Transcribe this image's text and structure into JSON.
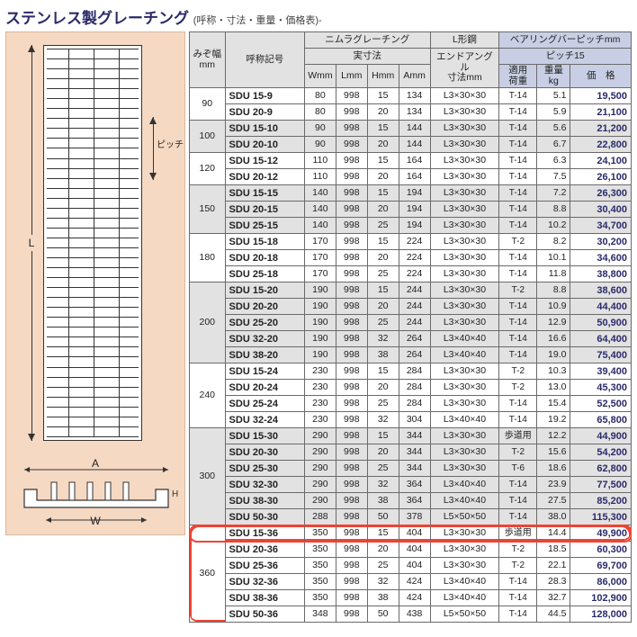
{
  "title": "ステンレス製グレーチング",
  "subtitle": "(呼称・寸法・重量・価格表)-",
  "diagram": {
    "L": "L",
    "pitch": "ピッチ",
    "A": "A",
    "W": "W",
    "H": "H"
  },
  "headers": {
    "mizo": "みぞ幅\nmm",
    "model": "呼称記号",
    "nimura": "ニムラグレーチング",
    "jissun": "実寸法",
    "W": "Wmm",
    "L": "Lmm",
    "H": "Hmm",
    "A": "Amm",
    "Lkou": "L形鋼",
    "endangle": "エンドアングル\n寸法mm",
    "bearing": "ベアリングバーピッチmm",
    "pitch15": "ピッチ15",
    "load": "適用\n荷重",
    "wt": "重量\nkg",
    "price": "価　格"
  },
  "groups": [
    {
      "mizo": "90",
      "band": false,
      "rows": [
        {
          "m": "SDU 15-9",
          "W": "80",
          "L": "998",
          "H": "15",
          "A": "134",
          "ang": "L3×30×30",
          "ld": "T-14",
          "wt": "5.1",
          "p": "19,500"
        },
        {
          "m": "SDU 20-9",
          "W": "80",
          "L": "998",
          "H": "20",
          "A": "134",
          "ang": "L3×30×30",
          "ld": "T-14",
          "wt": "5.9",
          "p": "21,100"
        }
      ]
    },
    {
      "mizo": "100",
      "band": true,
      "rows": [
        {
          "m": "SDU 15-10",
          "W": "90",
          "L": "998",
          "H": "15",
          "A": "144",
          "ang": "L3×30×30",
          "ld": "T-14",
          "wt": "5.6",
          "p": "21,200"
        },
        {
          "m": "SDU 20-10",
          "W": "90",
          "L": "998",
          "H": "20",
          "A": "144",
          "ang": "L3×30×30",
          "ld": "T-14",
          "wt": "6.7",
          "p": "22,800"
        }
      ]
    },
    {
      "mizo": "120",
      "band": false,
      "rows": [
        {
          "m": "SDU 15-12",
          "W": "110",
          "L": "998",
          "H": "15",
          "A": "164",
          "ang": "L3×30×30",
          "ld": "T-14",
          "wt": "6.3",
          "p": "24,100"
        },
        {
          "m": "SDU 20-12",
          "W": "110",
          "L": "998",
          "H": "20",
          "A": "164",
          "ang": "L3×30×30",
          "ld": "T-14",
          "wt": "7.5",
          "p": "26,100"
        }
      ]
    },
    {
      "mizo": "150",
      "band": true,
      "rows": [
        {
          "m": "SDU 15-15",
          "W": "140",
          "L": "998",
          "H": "15",
          "A": "194",
          "ang": "L3×30×30",
          "ld": "T-14",
          "wt": "7.2",
          "p": "26,300"
        },
        {
          "m": "SDU 20-15",
          "W": "140",
          "L": "998",
          "H": "20",
          "A": "194",
          "ang": "L3×30×30",
          "ld": "T-14",
          "wt": "8.8",
          "p": "30,400"
        },
        {
          "m": "SDU 25-15",
          "W": "140",
          "L": "998",
          "H": "25",
          "A": "194",
          "ang": "L3×30×30",
          "ld": "T-14",
          "wt": "10.2",
          "p": "34,700"
        }
      ]
    },
    {
      "mizo": "180",
      "band": false,
      "rows": [
        {
          "m": "SDU 15-18",
          "W": "170",
          "L": "998",
          "H": "15",
          "A": "224",
          "ang": "L3×30×30",
          "ld": "T-2",
          "wt": "8.2",
          "p": "30,200"
        },
        {
          "m": "SDU 20-18",
          "W": "170",
          "L": "998",
          "H": "20",
          "A": "224",
          "ang": "L3×30×30",
          "ld": "T-14",
          "wt": "10.1",
          "p": "34,600"
        },
        {
          "m": "SDU 25-18",
          "W": "170",
          "L": "998",
          "H": "25",
          "A": "224",
          "ang": "L3×30×30",
          "ld": "T-14",
          "wt": "11.8",
          "p": "38,800"
        }
      ]
    },
    {
      "mizo": "200",
      "band": true,
      "rows": [
        {
          "m": "SDU 15-20",
          "W": "190",
          "L": "998",
          "H": "15",
          "A": "244",
          "ang": "L3×30×30",
          "ld": "T-2",
          "wt": "8.8",
          "p": "38,600"
        },
        {
          "m": "SDU 20-20",
          "W": "190",
          "L": "998",
          "H": "20",
          "A": "244",
          "ang": "L3×30×30",
          "ld": "T-14",
          "wt": "10.9",
          "p": "44,400"
        },
        {
          "m": "SDU 25-20",
          "W": "190",
          "L": "998",
          "H": "25",
          "A": "244",
          "ang": "L3×30×30",
          "ld": "T-14",
          "wt": "12.9",
          "p": "50,900"
        },
        {
          "m": "SDU 32-20",
          "W": "190",
          "L": "998",
          "H": "32",
          "A": "264",
          "ang": "L3×40×40",
          "ld": "T-14",
          "wt": "16.6",
          "p": "64,400"
        },
        {
          "m": "SDU 38-20",
          "W": "190",
          "L": "998",
          "H": "38",
          "A": "264",
          "ang": "L3×40×40",
          "ld": "T-14",
          "wt": "19.0",
          "p": "75,400"
        }
      ]
    },
    {
      "mizo": "240",
      "band": false,
      "rows": [
        {
          "m": "SDU 15-24",
          "W": "230",
          "L": "998",
          "H": "15",
          "A": "284",
          "ang": "L3×30×30",
          "ld": "T-2",
          "wt": "10.3",
          "p": "39,400"
        },
        {
          "m": "SDU 20-24",
          "W": "230",
          "L": "998",
          "H": "20",
          "A": "284",
          "ang": "L3×30×30",
          "ld": "T-2",
          "wt": "13.0",
          "p": "45,300"
        },
        {
          "m": "SDU 25-24",
          "W": "230",
          "L": "998",
          "H": "25",
          "A": "284",
          "ang": "L3×30×30",
          "ld": "T-14",
          "wt": "15.4",
          "p": "52,500"
        },
        {
          "m": "SDU 32-24",
          "W": "230",
          "L": "998",
          "H": "32",
          "A": "304",
          "ang": "L3×40×40",
          "ld": "T-14",
          "wt": "19.2",
          "p": "65,800"
        }
      ]
    },
    {
      "mizo": "300",
      "band": true,
      "rows": [
        {
          "m": "SDU 15-30",
          "W": "290",
          "L": "998",
          "H": "15",
          "A": "344",
          "ang": "L3×30×30",
          "ld": "歩道用",
          "wt": "12.2",
          "p": "44,900"
        },
        {
          "m": "SDU 20-30",
          "W": "290",
          "L": "998",
          "H": "20",
          "A": "344",
          "ang": "L3×30×30",
          "ld": "T-2",
          "wt": "15.6",
          "p": "54,200"
        },
        {
          "m": "SDU 25-30",
          "W": "290",
          "L": "998",
          "H": "25",
          "A": "344",
          "ang": "L3×30×30",
          "ld": "T-6",
          "wt": "18.6",
          "p": "62,800"
        },
        {
          "m": "SDU 32-30",
          "W": "290",
          "L": "998",
          "H": "32",
          "A": "364",
          "ang": "L3×40×40",
          "ld": "T-14",
          "wt": "23.9",
          "p": "77,500"
        },
        {
          "m": "SDU 38-30",
          "W": "290",
          "L": "998",
          "H": "38",
          "A": "364",
          "ang": "L3×40×40",
          "ld": "T-14",
          "wt": "27.5",
          "p": "85,200"
        },
        {
          "m": "SDU 50-30",
          "W": "288",
          "L": "998",
          "H": "50",
          "A": "378",
          "ang": "L5×50×50",
          "ld": "T-14",
          "wt": "38.0",
          "p": "115,300"
        }
      ]
    },
    {
      "mizo": "360",
      "band": false,
      "rows": [
        {
          "m": "SDU 15-36",
          "W": "350",
          "L": "998",
          "H": "15",
          "A": "404",
          "ang": "L3×30×30",
          "ld": "歩道用",
          "wt": "14.4",
          "p": "49,900",
          "hl": true
        },
        {
          "m": "SDU 20-36",
          "W": "350",
          "L": "998",
          "H": "20",
          "A": "404",
          "ang": "L3×30×30",
          "ld": "T-2",
          "wt": "18.5",
          "p": "60,300"
        },
        {
          "m": "SDU 25-36",
          "W": "350",
          "L": "998",
          "H": "25",
          "A": "404",
          "ang": "L3×30×30",
          "ld": "T-2",
          "wt": "22.1",
          "p": "69,700"
        },
        {
          "m": "SDU 32-36",
          "W": "350",
          "L": "998",
          "H": "32",
          "A": "424",
          "ang": "L3×40×40",
          "ld": "T-14",
          "wt": "28.3",
          "p": "86,000"
        },
        {
          "m": "SDU 38-36",
          "W": "350",
          "L": "998",
          "H": "38",
          "A": "424",
          "ang": "L3×40×40",
          "ld": "T-14",
          "wt": "32.7",
          "p": "102,900"
        },
        {
          "m": "SDU 50-36",
          "W": "348",
          "L": "998",
          "H": "50",
          "A": "438",
          "ang": "L5×50×50",
          "ld": "T-14",
          "wt": "44.5",
          "p": "128,000"
        }
      ]
    }
  ]
}
